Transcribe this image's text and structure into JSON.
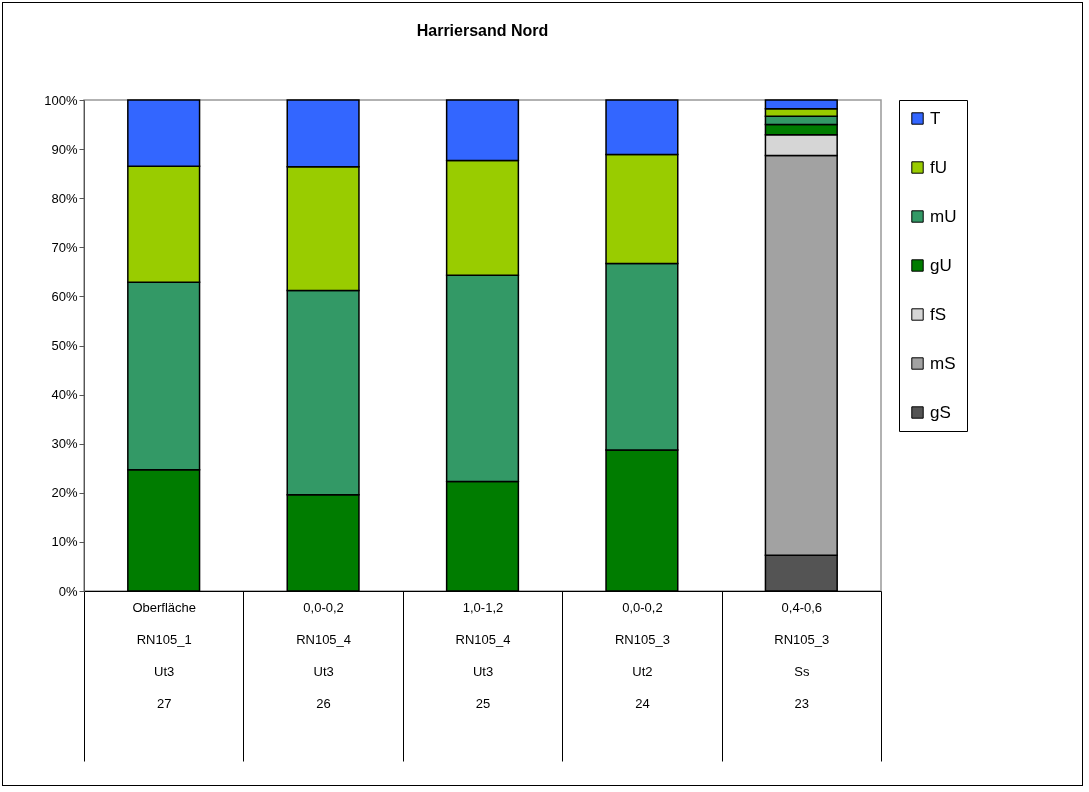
{
  "chart_data": {
    "type": "bar",
    "title": "Harriersand Nord",
    "stacked": true,
    "legend": "right",
    "categories": [
      "Oberfläche\nRN105_1\nUt3\n27",
      "0,0-0,2\nRN105_4\nUt3\n26",
      "1,0-1,2\nRN105_4\nUt3\n25",
      "0,0-0,2\nRN105_3\nUt2\n24",
      "0,4-0,6\nRN105_3\nSs\n23"
    ],
    "series": [
      {
        "name": "gS",
        "color": "#545454",
        "values": [
          0,
          0,
          0,
          0,
          7.3
        ]
      },
      {
        "name": "mS",
        "color": "#a2a2a2",
        "values": [
          0,
          0,
          0,
          0,
          81.4
        ]
      },
      {
        "name": "fS",
        "color": "#d6d6d6",
        "values": [
          0,
          0,
          0,
          0,
          4.2
        ]
      },
      {
        "name": "gU",
        "color": "#007c00",
        "values": [
          24.7,
          19.6,
          22.3,
          28.7,
          2.1
        ]
      },
      {
        "name": "mU",
        "color": "#339966",
        "values": [
          38.2,
          41.6,
          42.0,
          38.0,
          1.7
        ]
      },
      {
        "name": "fU",
        "color": "#99cc00",
        "values": [
          23.6,
          25.2,
          23.4,
          22.2,
          1.5
        ]
      },
      {
        "name": "T",
        "color": "#3366ff",
        "values": [
          13.5,
          13.6,
          12.3,
          11.1,
          1.8
        ]
      }
    ],
    "ylim": [
      0,
      100
    ],
    "yticks": [
      {
        "value": 0,
        "label": "0%"
      },
      {
        "value": 10,
        "label": "10%"
      },
      {
        "value": 20,
        "label": "20%"
      },
      {
        "value": 30,
        "label": "30%"
      },
      {
        "value": 40,
        "label": "40%"
      },
      {
        "value": 50,
        "label": "50%"
      },
      {
        "value": 60,
        "label": "60%"
      },
      {
        "value": 70,
        "label": "70%"
      },
      {
        "value": 80,
        "label": "80%"
      },
      {
        "value": 90,
        "label": "90%"
      },
      {
        "value": 100,
        "label": "100%"
      }
    ]
  }
}
